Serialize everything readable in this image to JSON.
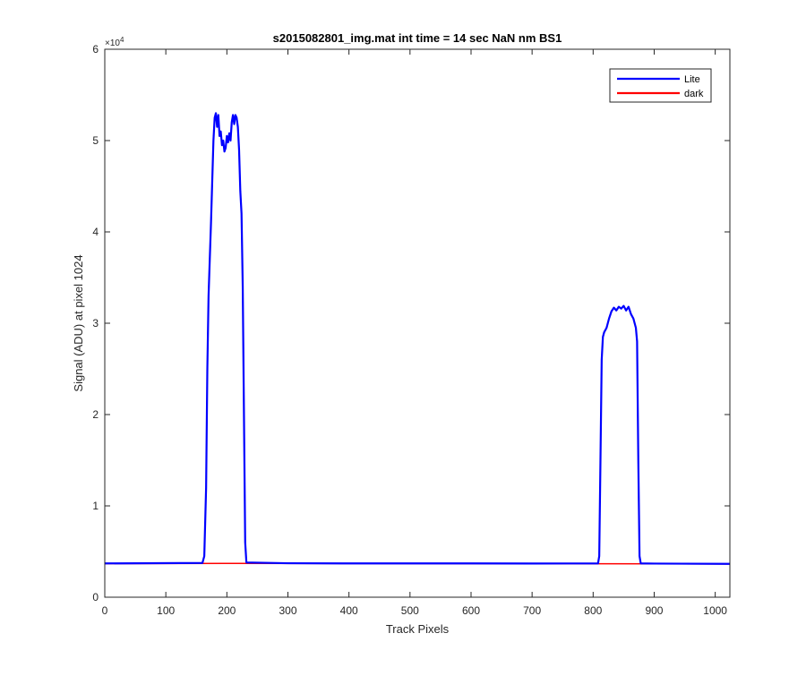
{
  "chart_data": {
    "type": "line",
    "title": "s2015082801_img.mat int time = 14 sec  NaN nm BS1",
    "xlabel": "Track Pixels",
    "ylabel": "Signal (ADU) at pixel 1024",
    "y_exponent_label": "×10",
    "y_exponent_power": "4",
    "xlim": [
      0,
      1024
    ],
    "ylim": [
      0,
      60000
    ],
    "x_ticks": [
      0,
      100,
      200,
      300,
      400,
      500,
      600,
      700,
      800,
      900,
      1000
    ],
    "x_tick_labels": [
      "0",
      "100",
      "200",
      "300",
      "400",
      "500",
      "600",
      "700",
      "800",
      "900",
      "1000"
    ],
    "y_ticks": [
      0,
      10000,
      20000,
      30000,
      40000,
      50000,
      60000
    ],
    "y_tick_labels": [
      "0",
      "1",
      "2",
      "3",
      "4",
      "5",
      "6"
    ],
    "grid": false,
    "legend_position": "top-right",
    "series": [
      {
        "name": "Lite",
        "color": "#0000ff",
        "points": [
          [
            0,
            3700
          ],
          [
            160,
            3750
          ],
          [
            163,
            4500
          ],
          [
            166,
            12000
          ],
          [
            168,
            25000
          ],
          [
            170,
            33000
          ],
          [
            172,
            37000
          ],
          [
            174,
            41000
          ],
          [
            176,
            45500
          ],
          [
            178,
            50000
          ],
          [
            180,
            52500
          ],
          [
            182,
            53000
          ],
          [
            184,
            51500
          ],
          [
            186,
            52800
          ],
          [
            188,
            50500
          ],
          [
            190,
            51000
          ],
          [
            192,
            49500
          ],
          [
            194,
            50000
          ],
          [
            196,
            48800
          ],
          [
            198,
            49200
          ],
          [
            200,
            50500
          ],
          [
            202,
            49800
          ],
          [
            204,
            50800
          ],
          [
            206,
            50000
          ],
          [
            208,
            52000
          ],
          [
            210,
            52800
          ],
          [
            212,
            51800
          ],
          [
            214,
            52800
          ],
          [
            216,
            52500
          ],
          [
            218,
            51500
          ],
          [
            220,
            49000
          ],
          [
            222,
            44500
          ],
          [
            224,
            42000
          ],
          [
            226,
            34000
          ],
          [
            228,
            20000
          ],
          [
            230,
            6000
          ],
          [
            232,
            3800
          ],
          [
            300,
            3720
          ],
          [
            400,
            3700
          ],
          [
            500,
            3700
          ],
          [
            600,
            3700
          ],
          [
            700,
            3690
          ],
          [
            808,
            3700
          ],
          [
            810,
            4500
          ],
          [
            812,
            15000
          ],
          [
            814,
            26000
          ],
          [
            816,
            28500
          ],
          [
            818,
            29000
          ],
          [
            822,
            29500
          ],
          [
            826,
            30500
          ],
          [
            830,
            31300
          ],
          [
            834,
            31700
          ],
          [
            838,
            31400
          ],
          [
            842,
            31800
          ],
          [
            846,
            31600
          ],
          [
            850,
            31900
          ],
          [
            854,
            31400
          ],
          [
            858,
            31800
          ],
          [
            862,
            31000
          ],
          [
            866,
            30500
          ],
          [
            868,
            30000
          ],
          [
            870,
            29500
          ],
          [
            872,
            28000
          ],
          [
            874,
            15000
          ],
          [
            876,
            4500
          ],
          [
            878,
            3700
          ],
          [
            900,
            3680
          ],
          [
            1024,
            3650
          ]
        ]
      },
      {
        "name": "dark",
        "color": "#ff0000",
        "points": [
          [
            0,
            3680
          ],
          [
            200,
            3700
          ],
          [
            400,
            3690
          ],
          [
            600,
            3680
          ],
          [
            800,
            3670
          ],
          [
            1024,
            3640
          ]
        ]
      }
    ]
  }
}
